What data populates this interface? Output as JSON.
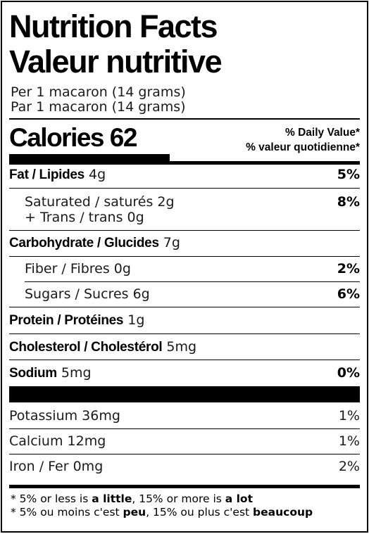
{
  "title_en": "Nutrition Facts",
  "title_fr": "Valeur nutritive",
  "serving_en": "Per 1 macaron (14 grams)",
  "serving_fr": "Par 1 macaron (14 grams)",
  "calories_label": "Calories",
  "calories_value": "62",
  "dv_header_en": "% Daily Value*",
  "dv_header_fr": "% valeur quotidienne*",
  "nutrients": {
    "fat": {
      "label": "Fat / Lipides",
      "amount": "4g",
      "dv": "5%"
    },
    "saturated": {
      "label": "Saturated / saturés",
      "amount": "2g",
      "dv": "8%"
    },
    "trans": {
      "label": "+ Trans / trans",
      "amount": "0g"
    },
    "carbohydrate": {
      "label": "Carbohydrate / Glucides",
      "amount": "7g"
    },
    "fiber": {
      "label": "Fiber / Fibres",
      "amount": "0g",
      "dv": "2%"
    },
    "sugars": {
      "label": "Sugars / Sucres",
      "amount": "6g",
      "dv": "6%"
    },
    "protein": {
      "label": "Protein / Protéines",
      "amount": "1g"
    },
    "cholesterol": {
      "label": "Cholesterol / Cholestérol",
      "amount": "5mg"
    },
    "sodium": {
      "label": "Sodium",
      "amount": "5mg",
      "dv": "0%"
    }
  },
  "minerals": {
    "potassium": {
      "label": "Potassium",
      "amount": "36mg",
      "dv": "1%"
    },
    "calcium": {
      "label": "Calcium",
      "amount": "12mg",
      "dv": "1%"
    },
    "iron": {
      "label": "Iron / Fer",
      "amount": "0mg",
      "dv": "2%"
    }
  },
  "footnote": {
    "en_a": "* 5% or less is ",
    "en_b": "a little",
    "en_c": ", 15% or more is ",
    "en_d": "a lot",
    "fr_a": "* 5% ou moins c'est ",
    "fr_b": "peu",
    "fr_c": ", 15% ou plus c'est ",
    "fr_d": "beaucoup"
  }
}
